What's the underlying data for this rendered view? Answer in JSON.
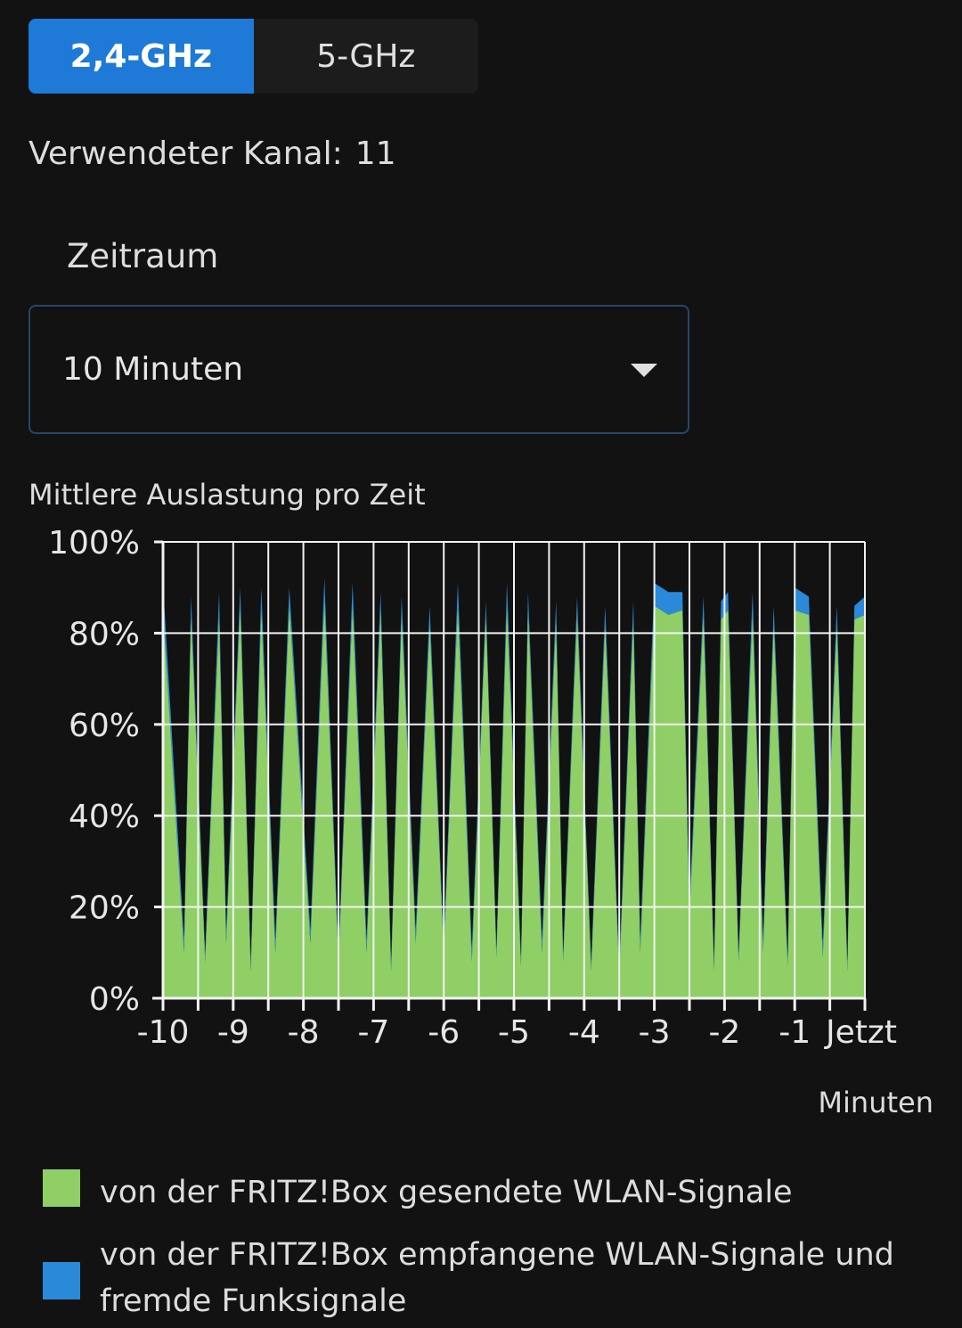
{
  "tabs": [
    {
      "label": "2,4-GHz",
      "active": true
    },
    {
      "label": "5-GHz",
      "active": false
    }
  ],
  "channel": {
    "label": "Verwendeter Kanal:",
    "value": "11"
  },
  "period": {
    "label": "Zeitraum",
    "selected": "10 Minuten"
  },
  "chart": {
    "title": "Mittlere Auslastung pro Zeit",
    "x_unit": "Minuten"
  },
  "chart_data": {
    "type": "area",
    "title": "Mittlere Auslastung pro Zeit",
    "xlabel": "Minuten",
    "ylabel": "",
    "x_ticks": [
      "-10",
      "-9",
      "-8",
      "-7",
      "-6",
      "-5",
      "-4",
      "-3",
      "-2",
      "-1",
      "Jetzt"
    ],
    "y_ticks": [
      "0%",
      "20%",
      "40%",
      "60%",
      "80%",
      "100%"
    ],
    "xlim": [
      -10,
      0
    ],
    "ylim": [
      0,
      100
    ],
    "stacked": true,
    "grid": true,
    "series": [
      {
        "name": "von der FRITZ!Box gesendete WLAN-Signale",
        "color": "#8fcf65",
        "x": [
          -10,
          -9.7,
          -9.6,
          -9.4,
          -9.2,
          -9.1,
          -8.9,
          -8.75,
          -8.6,
          -8.4,
          -8.2,
          -7.9,
          -7.7,
          -7.5,
          -7.3,
          -7.1,
          -6.9,
          -6.75,
          -6.6,
          -6.4,
          -6.2,
          -6,
          -5.8,
          -5.6,
          -5.4,
          -5.25,
          -5.1,
          -4.9,
          -4.8,
          -4.6,
          -4.4,
          -4.3,
          -4.1,
          -3.9,
          -3.7,
          -3.5,
          -3.3,
          -3.2,
          -3,
          -2.8,
          -2.6,
          -2.5,
          -2.3,
          -2.15,
          -2.05,
          -1.95,
          -1.8,
          -1.6,
          -1.45,
          -1.3,
          -1.1,
          -1,
          -0.8,
          -0.6,
          -0.4,
          -0.25,
          -0.15,
          0
        ],
        "values": [
          85,
          10,
          84,
          8,
          84,
          12,
          86,
          6,
          85,
          10,
          86,
          12,
          87,
          8,
          86,
          10,
          85,
          6,
          84,
          12,
          82,
          10,
          86,
          8,
          84,
          9,
          86,
          7,
          85,
          10,
          83,
          8,
          84,
          6,
          82,
          5,
          83,
          10,
          86,
          84,
          85,
          18,
          84,
          6,
          83,
          85,
          8,
          84,
          10,
          82,
          7,
          85,
          84,
          9,
          82,
          6,
          83,
          84
        ]
      },
      {
        "name": "von der FRITZ!Box empfangene WLAN-Signale und fremde Funksignale",
        "color": "#2a8ad9",
        "x": [
          -10,
          -9.7,
          -9.6,
          -9.4,
          -9.2,
          -9.1,
          -8.9,
          -8.75,
          -8.6,
          -8.4,
          -8.2,
          -7.9,
          -7.7,
          -7.5,
          -7.3,
          -7.1,
          -6.9,
          -6.75,
          -6.6,
          -6.4,
          -6.2,
          -6,
          -5.8,
          -5.6,
          -5.4,
          -5.25,
          -5.1,
          -4.9,
          -4.8,
          -4.6,
          -4.4,
          -4.3,
          -4.1,
          -3.9,
          -3.7,
          -3.5,
          -3.3,
          -3.2,
          -3,
          -2.8,
          -2.6,
          -2.5,
          -2.3,
          -2.15,
          -2.05,
          -1.95,
          -1.8,
          -1.6,
          -1.45,
          -1.3,
          -1.1,
          -1,
          -0.8,
          -0.6,
          -0.4,
          -0.25,
          -0.15,
          0
        ],
        "values": [
          6,
          3,
          4,
          2,
          5,
          3,
          4,
          2,
          5,
          3,
          4,
          3,
          5,
          2,
          5,
          3,
          4,
          2,
          4,
          3,
          4,
          2,
          5,
          3,
          3,
          2,
          5,
          2,
          4,
          3,
          4,
          2,
          4,
          2,
          4,
          2,
          4,
          3,
          5,
          5,
          4,
          3,
          4,
          2,
          4,
          4,
          2,
          5,
          3,
          4,
          2,
          5,
          4,
          3,
          4,
          2,
          3,
          4
        ]
      }
    ]
  },
  "legend": [
    {
      "label": "von der FRITZ!Box gesendete WLAN-Signale",
      "color": "#8fcf65"
    },
    {
      "label": "von der FRITZ!Box empfangene WLAN-Signale und fremde Funksignale",
      "color": "#2a8ad9"
    }
  ]
}
